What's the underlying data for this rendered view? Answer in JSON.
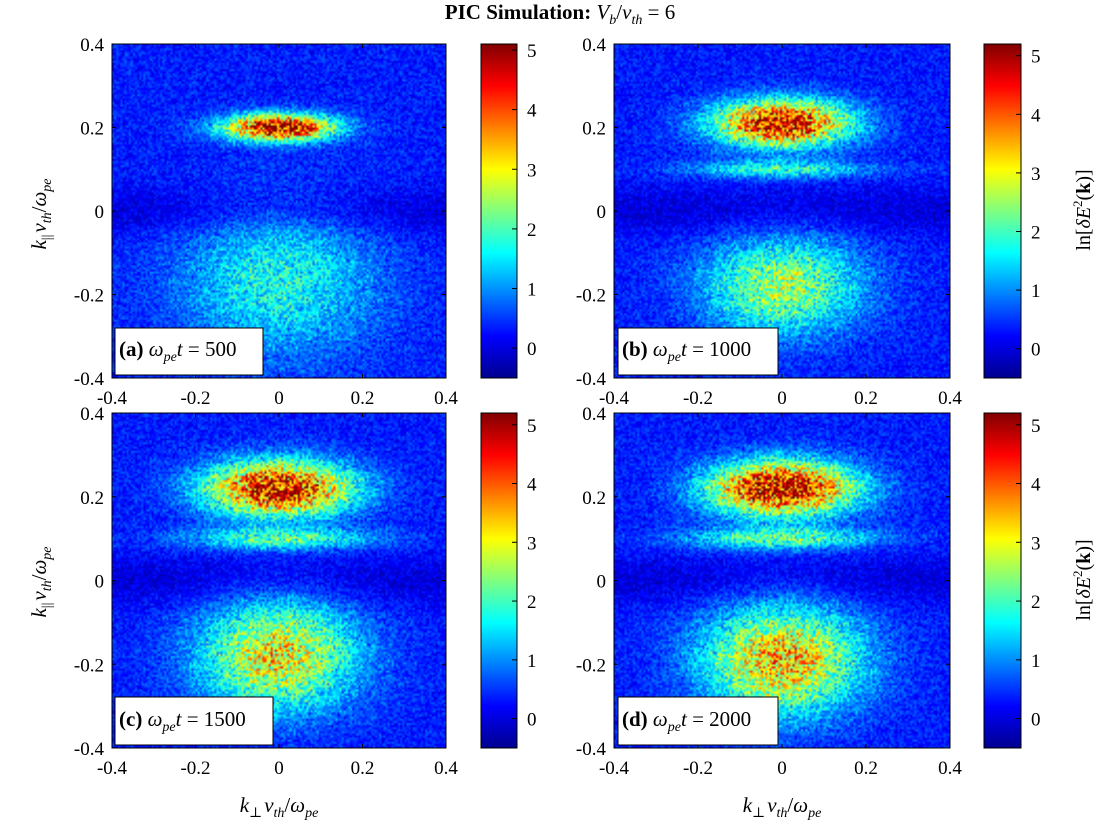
{
  "figure": {
    "title": {
      "prefix": "PIC Simulation: ",
      "V": "V",
      "b": "b",
      "slash": "/",
      "v": "v",
      "th": "th",
      "suffix": " = 6"
    }
  },
  "axis_labels": {
    "y": {
      "k": "k",
      "par": "||",
      "v": "v",
      "th": "th",
      "slash": "/",
      "omega": "ω",
      "pe": "pe"
    },
    "x": {
      "k": "k",
      "perp": "⊥",
      "v": "v",
      "th": "th",
      "slash": "/",
      "omega": "ω",
      "pe": "pe"
    },
    "colorbar": {
      "pre": "ln[",
      "delta": "δ",
      "E": "E",
      "two": "2",
      "paren_open": "(",
      "kvec": "k",
      "post": ")]"
    }
  },
  "panels": [
    {
      "tag": "(a)",
      "omega": "ω",
      "pe": "pe",
      "t": "t",
      "eq": " = 500"
    },
    {
      "tag": "(b)",
      "omega": "ω",
      "pe": "pe",
      "t": "t",
      "eq": " = 1000"
    },
    {
      "tag": "(c)",
      "omega": "ω",
      "pe": "pe",
      "t": "t",
      "eq": " = 1500"
    },
    {
      "tag": "(d)",
      "omega": "ω",
      "pe": "pe",
      "t": "t",
      "eq": " = 2000"
    }
  ],
  "colors": {
    "colormap": "jet"
  },
  "chart_data": [
    {
      "type": "heatmap",
      "panel": "(a)",
      "x_ticks": [
        "-0.4",
        "-0.2",
        "0",
        "0.2",
        "0.4"
      ],
      "y_ticks": [
        "0.4",
        "0.2",
        "0",
        "-0.2",
        "-0.4"
      ],
      "xlim": [
        -0.4,
        0.4
      ],
      "ylim": [
        -0.4,
        0.4
      ],
      "colorbar": {
        "ticks": [
          "5",
          "4",
          "3",
          "2",
          "1",
          "0"
        ],
        "range": [
          -0.5,
          5.1
        ]
      },
      "features": [
        {
          "kx": 0.0,
          "ky": 0.2,
          "sx": 0.09,
          "sy": 0.022,
          "peak": 4.8
        },
        {
          "kx": 0.0,
          "ky": -0.17,
          "sx": 0.16,
          "sy": 0.12,
          "peak": 1.4
        }
      ]
    },
    {
      "type": "heatmap",
      "panel": "(b)",
      "x_ticks": [
        "-0.4",
        "-0.2",
        "0",
        "0.2",
        "0.4"
      ],
      "y_ticks": [
        "0.4",
        "0.2",
        "0",
        "-0.2",
        "-0.4"
      ],
      "xlim": [
        -0.4,
        0.4
      ],
      "ylim": [
        -0.4,
        0.4
      ],
      "colorbar": {
        "ticks": [
          "5",
          "4",
          "3",
          "2",
          "1",
          "0"
        ],
        "range": [
          -0.5,
          5.2
        ]
      },
      "features": [
        {
          "kx": 0.0,
          "ky": 0.21,
          "sx": 0.11,
          "sy": 0.038,
          "peak": 4.6
        },
        {
          "kx": 0.0,
          "ky": 0.1,
          "sx": 0.15,
          "sy": 0.015,
          "peak": 1.5
        },
        {
          "kx": 0.0,
          "ky": -0.18,
          "sx": 0.13,
          "sy": 0.08,
          "peak": 2.2
        }
      ]
    },
    {
      "type": "heatmap",
      "panel": "(c)",
      "x_ticks": [
        "-0.4",
        "-0.2",
        "0",
        "0.2",
        "0.4"
      ],
      "y_ticks": [
        "0.4",
        "0.2",
        "0",
        "-0.2",
        "-0.4"
      ],
      "xlim": [
        -0.4,
        0.4
      ],
      "ylim": [
        -0.4,
        0.4
      ],
      "colorbar": {
        "ticks": [
          "5",
          "4",
          "3",
          "2",
          "1",
          "0"
        ],
        "range": [
          -0.5,
          5.2
        ]
      },
      "features": [
        {
          "kx": 0.0,
          "ky": 0.22,
          "sx": 0.12,
          "sy": 0.045,
          "peak": 4.6
        },
        {
          "kx": 0.0,
          "ky": 0.1,
          "sx": 0.16,
          "sy": 0.018,
          "peak": 1.7
        },
        {
          "kx": 0.0,
          "ky": -0.18,
          "sx": 0.13,
          "sy": 0.09,
          "peak": 2.8
        }
      ]
    },
    {
      "type": "heatmap",
      "panel": "(d)",
      "x_ticks": [
        "-0.4",
        "-0.2",
        "0",
        "0.2",
        "0.4"
      ],
      "y_ticks": [
        "0.4",
        "0.2",
        "0",
        "-0.2",
        "-0.4"
      ],
      "xlim": [
        -0.4,
        0.4
      ],
      "ylim": [
        -0.4,
        0.4
      ],
      "colorbar": {
        "ticks": [
          "5",
          "4",
          "3",
          "2",
          "1",
          "0"
        ],
        "range": [
          -0.5,
          5.2
        ]
      },
      "features": [
        {
          "kx": 0.0,
          "ky": 0.22,
          "sx": 0.12,
          "sy": 0.045,
          "peak": 4.7
        },
        {
          "kx": 0.0,
          "ky": 0.1,
          "sx": 0.16,
          "sy": 0.018,
          "peak": 1.8
        },
        {
          "kx": 0.0,
          "ky": -0.19,
          "sx": 0.13,
          "sy": 0.09,
          "peak": 3.1
        }
      ]
    }
  ]
}
